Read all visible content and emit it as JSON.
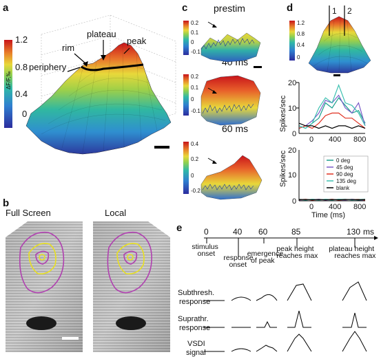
{
  "panel_labels": {
    "a": "a",
    "b": "b",
    "c": "c",
    "d": "d",
    "e": "e"
  },
  "panel_a": {
    "colorbar_ticks": [
      "1.2",
      "0.8",
      "0.4",
      "0"
    ],
    "colorbar_label": "ΔF/F,‰",
    "annotations": {
      "peak": "peak",
      "plateau": "plateau",
      "rim": "rim",
      "periphery": "periphery"
    },
    "colors": {
      "low": "#2c2c9e",
      "mid": "#2fb8a8",
      "high_mid": "#e8d83a",
      "high": "#c8141a",
      "outline": "#000000"
    }
  },
  "panel_b": {
    "titles": [
      "Full Screen",
      "Local"
    ],
    "contour_colors": {
      "outer": "#b040b0",
      "inner": "#e8e020"
    }
  },
  "panel_c": {
    "titles": [
      "prestim",
      "40 ms",
      "60 ms"
    ],
    "cbar_ticks": [
      [
        "0.2",
        "0.1",
        "0",
        "-0.1"
      ],
      [
        "0.2",
        "0.1",
        "0",
        "-0.1"
      ],
      [
        "0.4",
        "0.2",
        "0",
        "-0.2"
      ]
    ]
  },
  "panel_d": {
    "markers": [
      "1",
      "2"
    ],
    "cbar_ticks": [
      "1.2",
      "0.8",
      "0.4",
      "0"
    ],
    "top_plot": {
      "ylabel": "Spikes/sec",
      "yticks": [
        "20",
        "10",
        "0"
      ],
      "xticks": [
        "0",
        "400",
        "800"
      ]
    },
    "bottom_plot": {
      "ylabel": "Spikes/sec",
      "yticks": [
        "20",
        "10",
        "0"
      ],
      "xticks": [
        "0",
        "400",
        "800"
      ],
      "xlabel": "Time (ms)"
    },
    "legend": [
      {
        "label": "0 deg",
        "color": "#1a9e8c"
      },
      {
        "label": "45 deg",
        "color": "#7a5cc8"
      },
      {
        "label": "90 deg",
        "color": "#e03020"
      },
      {
        "label": "135 deg",
        "color": "#3cc0b0"
      },
      {
        "label": "blank",
        "color": "#000000"
      }
    ]
  },
  "panel_e": {
    "axis_unit": "ms",
    "ticks": [
      "0",
      "40",
      "60",
      "85",
      "130"
    ],
    "events": [
      "stimulus\nonset",
      "response\nonset",
      "emergence\nof peak",
      "peak height\nreaches max",
      "plateau height\nreaches max"
    ],
    "row_labels": [
      "Subthresh.\nresponse",
      "Suprathr.\nresponse",
      "VSDI\nsignal"
    ]
  },
  "chart_data": [
    {
      "type": "line",
      "title": "",
      "xlabel": "",
      "ylabel": "Spikes/sec",
      "ylim": [
        0,
        20
      ],
      "xlim": [
        -200,
        800
      ],
      "x": [
        -200,
        -100,
        0,
        100,
        200,
        300,
        400,
        500,
        600,
        700,
        800
      ],
      "series": [
        {
          "name": "0 deg",
          "values": [
            3,
            2,
            4,
            6,
            12,
            10,
            14,
            11,
            8,
            9,
            4
          ]
        },
        {
          "name": "45 deg",
          "values": [
            2,
            3,
            5,
            8,
            13,
            12,
            15,
            10,
            8,
            12,
            3
          ]
        },
        {
          "name": "90 deg",
          "values": [
            2,
            3,
            2,
            4,
            7,
            8,
            8,
            6,
            6,
            4,
            2
          ]
        },
        {
          "name": "135 deg",
          "values": [
            3,
            2,
            4,
            10,
            14,
            12,
            19,
            12,
            11,
            8,
            3
          ]
        },
        {
          "name": "blank",
          "values": [
            4,
            3,
            3,
            2,
            3,
            2,
            3,
            3,
            2,
            3,
            2
          ]
        }
      ]
    },
    {
      "type": "line",
      "title": "",
      "xlabel": "Time (ms)",
      "ylabel": "Spikes/sec",
      "ylim": [
        0,
        20
      ],
      "xlim": [
        -200,
        800
      ],
      "x": [
        -200,
        -100,
        0,
        100,
        200,
        300,
        400,
        500,
        600,
        700,
        800
      ],
      "series": [
        {
          "name": "0 deg",
          "values": [
            0.5,
            0.3,
            0.6,
            0.4,
            0.5,
            0.3,
            0.6,
            0.4,
            0.5,
            0.3,
            0.4
          ]
        },
        {
          "name": "45 deg",
          "values": [
            0.3,
            0.5,
            0.4,
            0.6,
            0.3,
            0.5,
            0.4,
            0.3,
            0.6,
            0.4,
            0.3
          ]
        },
        {
          "name": "90 deg",
          "values": [
            0.4,
            0.6,
            0.3,
            0.5,
            0.4,
            0.6,
            0.3,
            0.5,
            0.4,
            0.6,
            0.3
          ]
        },
        {
          "name": "135 deg",
          "values": [
            0.6,
            0.4,
            0.5,
            0.3,
            0.6,
            0.4,
            0.5,
            0.6,
            0.3,
            0.5,
            0.6
          ]
        },
        {
          "name": "blank",
          "values": [
            0.5,
            0.5,
            0.4,
            0.5,
            0.4,
            0.5,
            0.4,
            0.5,
            0.5,
            0.4,
            0.5
          ]
        }
      ]
    }
  ]
}
